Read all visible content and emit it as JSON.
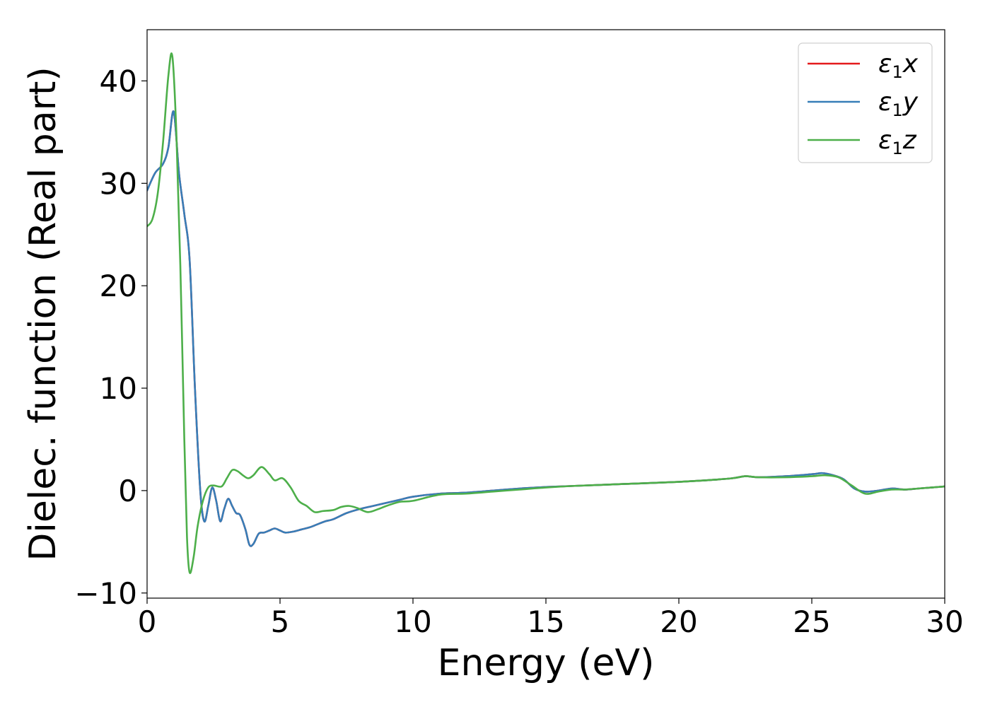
{
  "chart_data": {
    "type": "line",
    "xlabel": "Energy (eV)",
    "ylabel": "Dielec. function (Real part)",
    "xlim": [
      0,
      30
    ],
    "ylim": [
      -10.5,
      45
    ],
    "xticks": [
      0,
      5,
      10,
      15,
      20,
      25,
      30
    ],
    "yticks": [
      -10,
      0,
      10,
      20,
      30,
      40
    ],
    "ytick_labels": [
      "−10",
      "0",
      "10",
      "20",
      "30",
      "40"
    ],
    "grid": false,
    "legend_position": "top-right",
    "series": [
      {
        "name": "ε1x",
        "legend": {
          "greek": "ε",
          "sub": "1",
          "axis": "x"
        },
        "color": "#e41a1c",
        "x": [
          0,
          0.3,
          0.6,
          0.8,
          1.0,
          1.2,
          1.4,
          1.6,
          1.8,
          2.0,
          2.15,
          2.3,
          2.45,
          2.6,
          2.75,
          2.9,
          3.05,
          3.2,
          3.35,
          3.5,
          3.7,
          3.85,
          4.0,
          4.2,
          4.4,
          4.6,
          4.8,
          5.0,
          5.2,
          5.5,
          5.8,
          6.1,
          6.4,
          6.7,
          7.0,
          7.5,
          8.0,
          8.5,
          9.0,
          9.5,
          10.0,
          11.0,
          12.0,
          13.0,
          14.0,
          15.0,
          16.0,
          17.0,
          18.0,
          19.0,
          20.0,
          21.0,
          22.0,
          22.5,
          23.0,
          24.0,
          25.0,
          25.4,
          25.8,
          26.2,
          26.6,
          27.0,
          27.5,
          28.0,
          28.5,
          29.0,
          29.5,
          30.0
        ],
        "y": [
          29.3,
          31.0,
          31.9,
          33.5,
          37.0,
          31.0,
          27.0,
          22.5,
          10.0,
          0.0,
          -3.0,
          -1.5,
          0.3,
          -1.0,
          -3.0,
          -1.8,
          -0.8,
          -1.5,
          -2.2,
          -2.4,
          -3.8,
          -5.3,
          -5.2,
          -4.2,
          -4.1,
          -3.9,
          -3.7,
          -3.9,
          -4.1,
          -4.0,
          -3.8,
          -3.6,
          -3.3,
          -3.0,
          -2.8,
          -2.2,
          -1.8,
          -1.5,
          -1.2,
          -0.9,
          -0.6,
          -0.3,
          -0.2,
          0.0,
          0.2,
          0.35,
          0.45,
          0.55,
          0.65,
          0.75,
          0.85,
          1.0,
          1.2,
          1.4,
          1.3,
          1.4,
          1.6,
          1.7,
          1.5,
          1.1,
          0.2,
          -0.1,
          0.0,
          0.2,
          0.1,
          0.2,
          0.3,
          0.4
        ]
      },
      {
        "name": "ε1y",
        "legend": {
          "greek": "ε",
          "sub": "1",
          "axis": "y"
        },
        "color": "#377eb8",
        "x": [
          0,
          0.3,
          0.6,
          0.8,
          1.0,
          1.2,
          1.4,
          1.6,
          1.8,
          2.0,
          2.15,
          2.3,
          2.45,
          2.6,
          2.75,
          2.9,
          3.05,
          3.2,
          3.35,
          3.5,
          3.7,
          3.85,
          4.0,
          4.2,
          4.4,
          4.6,
          4.8,
          5.0,
          5.2,
          5.5,
          5.8,
          6.1,
          6.4,
          6.7,
          7.0,
          7.5,
          8.0,
          8.5,
          9.0,
          9.5,
          10.0,
          11.0,
          12.0,
          13.0,
          14.0,
          15.0,
          16.0,
          17.0,
          18.0,
          19.0,
          20.0,
          21.0,
          22.0,
          22.5,
          23.0,
          24.0,
          25.0,
          25.4,
          25.8,
          26.2,
          26.6,
          27.0,
          27.5,
          28.0,
          28.5,
          29.0,
          29.5,
          30.0
        ],
        "y": [
          29.3,
          31.0,
          31.9,
          33.5,
          37.0,
          31.0,
          27.0,
          22.5,
          10.0,
          0.0,
          -3.0,
          -1.5,
          0.3,
          -1.0,
          -3.0,
          -1.8,
          -0.8,
          -1.5,
          -2.2,
          -2.4,
          -3.8,
          -5.3,
          -5.2,
          -4.2,
          -4.1,
          -3.9,
          -3.7,
          -3.9,
          -4.1,
          -4.0,
          -3.8,
          -3.6,
          -3.3,
          -3.0,
          -2.8,
          -2.2,
          -1.8,
          -1.5,
          -1.2,
          -0.9,
          -0.6,
          -0.3,
          -0.2,
          0.0,
          0.2,
          0.35,
          0.45,
          0.55,
          0.65,
          0.75,
          0.85,
          1.0,
          1.2,
          1.4,
          1.3,
          1.4,
          1.6,
          1.7,
          1.5,
          1.1,
          0.2,
          -0.1,
          0.0,
          0.2,
          0.1,
          0.2,
          0.3,
          0.4
        ]
      },
      {
        "name": "ε1z",
        "legend": {
          "greek": "ε",
          "sub": "1",
          "axis": "z"
        },
        "color": "#4daf4a",
        "x": [
          0,
          0.2,
          0.4,
          0.6,
          0.8,
          0.95,
          1.1,
          1.25,
          1.4,
          1.5,
          1.6,
          1.75,
          1.9,
          2.1,
          2.3,
          2.5,
          2.8,
          3.0,
          3.2,
          3.4,
          3.6,
          3.8,
          4.0,
          4.3,
          4.6,
          4.8,
          5.1,
          5.4,
          5.7,
          6.0,
          6.3,
          6.6,
          7.0,
          7.3,
          7.6,
          7.9,
          8.3,
          8.7,
          9.0,
          9.5,
          10.0,
          11.0,
          12.0,
          13.0,
          14.0,
          15.0,
          16.0,
          17.0,
          18.0,
          19.0,
          20.0,
          21.0,
          22.0,
          22.5,
          23.0,
          24.0,
          25.0,
          25.5,
          26.0,
          26.5,
          27.0,
          27.5,
          28.0,
          28.5,
          29.0,
          29.5,
          30.0
        ],
        "y": [
          25.8,
          26.5,
          29.0,
          34.0,
          40.5,
          42.4,
          35.0,
          22.0,
          5.0,
          -4.5,
          -8.0,
          -6.5,
          -3.5,
          -1.0,
          0.3,
          0.5,
          0.4,
          1.2,
          2.0,
          1.9,
          1.5,
          1.2,
          1.5,
          2.3,
          1.6,
          1.0,
          1.2,
          0.3,
          -1.0,
          -1.5,
          -2.1,
          -2.0,
          -1.9,
          -1.6,
          -1.5,
          -1.7,
          -2.1,
          -1.8,
          -1.5,
          -1.1,
          -1.0,
          -0.4,
          -0.3,
          -0.1,
          0.1,
          0.3,
          0.45,
          0.55,
          0.65,
          0.75,
          0.85,
          1.0,
          1.2,
          1.4,
          1.3,
          1.3,
          1.4,
          1.5,
          1.3,
          0.5,
          -0.3,
          -0.1,
          0.1,
          0.1,
          0.2,
          0.3,
          0.4
        ]
      }
    ]
  }
}
